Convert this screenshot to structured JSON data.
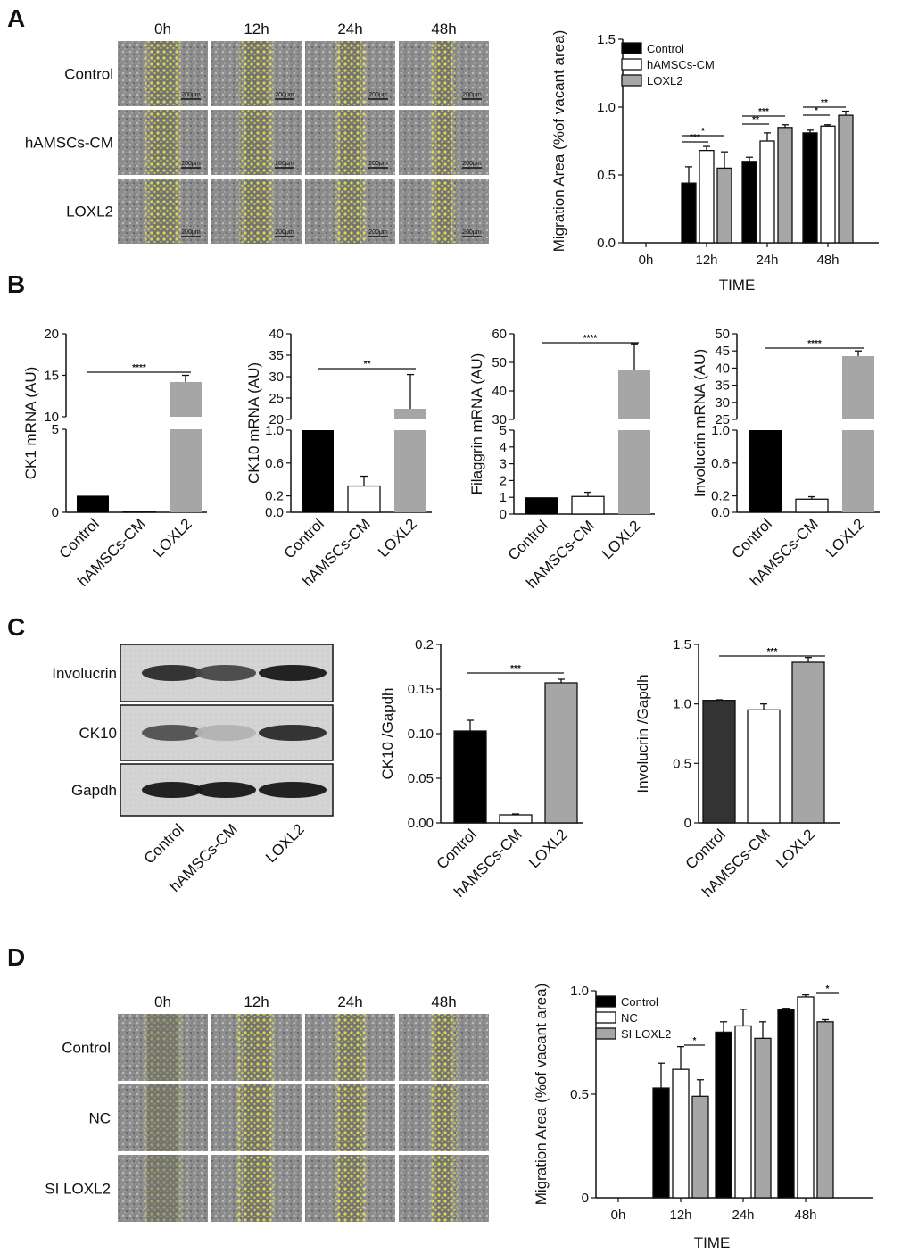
{
  "panels": {
    "A": "A",
    "B": "B",
    "C": "C",
    "D": "D"
  },
  "micro_A": {
    "columns": [
      "0h",
      "12h",
      "24h",
      "48h"
    ],
    "rows": [
      "Control",
      "hAMSCs-CM",
      "LOXL2"
    ],
    "scale_label": "200μm"
  },
  "micro_D": {
    "columns": [
      "0h",
      "12h",
      "24h",
      "48h"
    ],
    "rows": [
      "Control",
      "NC",
      "SI LOXL2"
    ]
  },
  "blot_C": {
    "rows": [
      "Involucrin",
      "CK10",
      "Gapdh"
    ],
    "lanes": [
      "Control",
      "hAMSCs-CM",
      "LOXL2"
    ]
  },
  "colors": {
    "control": "#000000",
    "hamscs": "#ffffff",
    "loxl2": "#a6a6a6",
    "invo_control": "#333333"
  },
  "chart_data": [
    {
      "id": "A_migration",
      "type": "bar",
      "ylabel": "Migration Area (%of vacant area)",
      "xlabel": "TIME",
      "categories": [
        "0h",
        "12h",
        "24h",
        "48h"
      ],
      "ylim": [
        0,
        1.5
      ],
      "yticks": [
        "0.0",
        "0.5",
        "1.0",
        "1.5"
      ],
      "legend_position": "top-left",
      "series": [
        {
          "name": "Control",
          "values": [
            0,
            0.44,
            0.6,
            0.81
          ],
          "errors": [
            0,
            0.12,
            0.03,
            0.02
          ]
        },
        {
          "name": "hAMSCs-CM",
          "values": [
            0,
            0.68,
            0.75,
            0.86
          ],
          "errors": [
            0,
            0.03,
            0.06,
            0.01
          ]
        },
        {
          "name": "LOXL2",
          "values": [
            0,
            0.55,
            0.85,
            0.94
          ],
          "errors": [
            0,
            0.12,
            0.02,
            0.03
          ]
        }
      ],
      "significance": [
        "*",
        "***",
        "***",
        "**",
        "**",
        "*"
      ]
    },
    {
      "id": "B_CK1",
      "type": "bar",
      "ylabel": "CK1 mRNA (AU)",
      "categories": [
        "Control",
        "hAMSCs-CM",
        "LOXL2"
      ],
      "broken_axis": true,
      "yticks_upper": [
        "10",
        "15",
        "20"
      ],
      "yticks_lower": [
        "0",
        "5"
      ],
      "values": [
        1.0,
        0.05,
        14.2
      ],
      "errors": [
        0,
        0.02,
        0.8
      ],
      "significance": "****"
    },
    {
      "id": "B_CK10",
      "type": "bar",
      "ylabel": "CK10 mRNA (AU)",
      "categories": [
        "Control",
        "hAMSCs-CM",
        "LOXL2"
      ],
      "broken_axis": true,
      "yticks_upper": [
        "20",
        "25",
        "30",
        "35",
        "40"
      ],
      "yticks_lower": [
        "0.0",
        "0.2",
        "0.6",
        "1.0"
      ],
      "values": [
        1.0,
        0.32,
        22.5
      ],
      "errors": [
        0,
        0.12,
        8.0
      ],
      "significance": "**"
    },
    {
      "id": "B_Filaggrin",
      "type": "bar",
      "ylabel": "Filaggrin mRNA (AU)",
      "categories": [
        "Control",
        "hAMSCs-CM",
        "LOXL2"
      ],
      "broken_axis": true,
      "yticks_upper": [
        "30",
        "40",
        "50",
        "60"
      ],
      "yticks_lower": [
        "0",
        "1",
        "2",
        "3",
        "4",
        "5"
      ],
      "values": [
        1.0,
        1.05,
        47.5
      ],
      "errors": [
        0,
        0.25,
        9.0
      ],
      "significance": "****"
    },
    {
      "id": "B_Involucrin",
      "type": "bar",
      "ylabel": "Involucrin mRNA (AU)",
      "categories": [
        "Control",
        "hAMSCs-CM",
        "LOXL2"
      ],
      "broken_axis": true,
      "yticks_upper": [
        "25",
        "30",
        "35",
        "40",
        "45",
        "50"
      ],
      "yticks_lower": [
        "0.0",
        "0.2",
        "0.6",
        "1.0"
      ],
      "values": [
        1.0,
        0.16,
        43.5
      ],
      "errors": [
        0,
        0.03,
        1.5
      ],
      "significance": "****"
    },
    {
      "id": "C_CK10",
      "type": "bar",
      "ylabel": "CK10 /Gapdh",
      "categories": [
        "Control",
        "hAMSCs-CM",
        "LOXL2"
      ],
      "ylim": [
        0,
        0.2
      ],
      "yticks": [
        "0.00",
        "0.05",
        "0.10",
        "0.15",
        "0.2"
      ],
      "values": [
        0.103,
        0.009,
        0.157
      ],
      "errors": [
        0.012,
        0.001,
        0.004
      ],
      "significance": "***"
    },
    {
      "id": "C_Involucrin",
      "type": "bar",
      "ylabel": "Involucrin /Gapdh",
      "categories": [
        "Control",
        "hAMSCs-CM",
        "LOXL2"
      ],
      "ylim": [
        0,
        1.5
      ],
      "yticks": [
        "0",
        "0.5",
        "1.0",
        "1.5"
      ],
      "values": [
        1.03,
        0.95,
        1.35
      ],
      "errors": [
        0.005,
        0.05,
        0.04
      ],
      "significance": "***"
    },
    {
      "id": "D_migration",
      "type": "bar",
      "ylabel": "Migration Area (%of vacant area)",
      "xlabel": "TIME",
      "categories": [
        "0h",
        "12h",
        "24h",
        "48h"
      ],
      "ylim": [
        0,
        1.0
      ],
      "yticks": [
        "0",
        "0.5",
        "1.0"
      ],
      "legend_position": "top-left",
      "series": [
        {
          "name": "Control",
          "values": [
            0,
            0.53,
            0.8,
            0.91
          ],
          "errors": [
            0,
            0.12,
            0.05,
            0.005
          ]
        },
        {
          "name": "NC",
          "values": [
            0,
            0.62,
            0.83,
            0.97
          ],
          "errors": [
            0,
            0.11,
            0.08,
            0.01
          ]
        },
        {
          "name": "SI LOXL2",
          "values": [
            0,
            0.49,
            0.77,
            0.85
          ],
          "errors": [
            0,
            0.08,
            0.08,
            0.01
          ]
        }
      ],
      "significance": [
        "*",
        "*"
      ]
    }
  ]
}
